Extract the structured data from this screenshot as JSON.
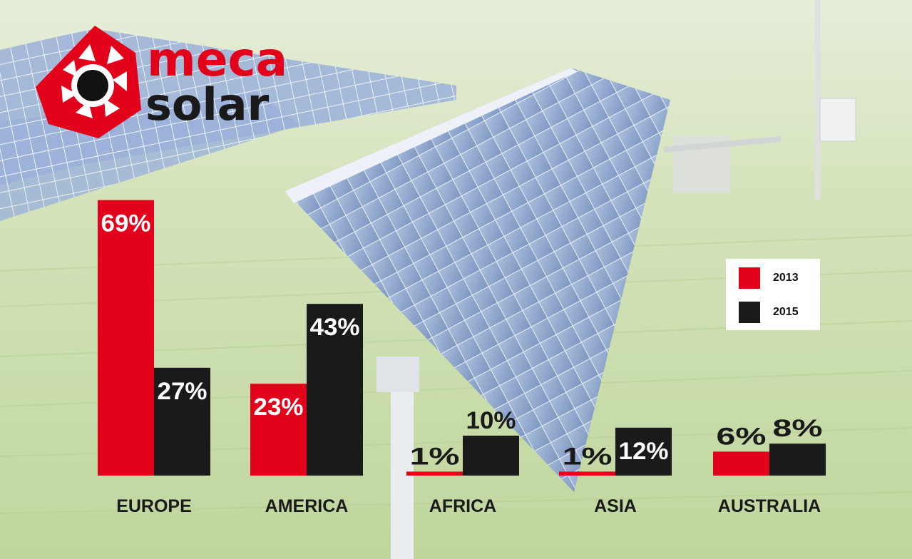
{
  "logo": {
    "line1": "meca",
    "line2": "solar"
  },
  "colors": {
    "series_2013": "#e2001a",
    "series_2015": "#1a1a1a",
    "label_text": "#1a1a1a"
  },
  "chart_data": {
    "type": "bar",
    "categories": [
      "EUROPE",
      "AMERICA",
      "AFRICA",
      "ASIA",
      "AUSTRALIA"
    ],
    "series": [
      {
        "name": "2013",
        "values": [
          69,
          23,
          1,
          1,
          6
        ],
        "labels": [
          "69%",
          "23%",
          "1%",
          "1%",
          "6%"
        ]
      },
      {
        "name": "2015",
        "values": [
          27,
          43,
          10,
          12,
          8
        ],
        "labels": [
          "27%",
          "43%",
          "10%",
          "12%",
          "8%"
        ]
      }
    ],
    "unit": "%",
    "legend": "right",
    "grid": false
  }
}
